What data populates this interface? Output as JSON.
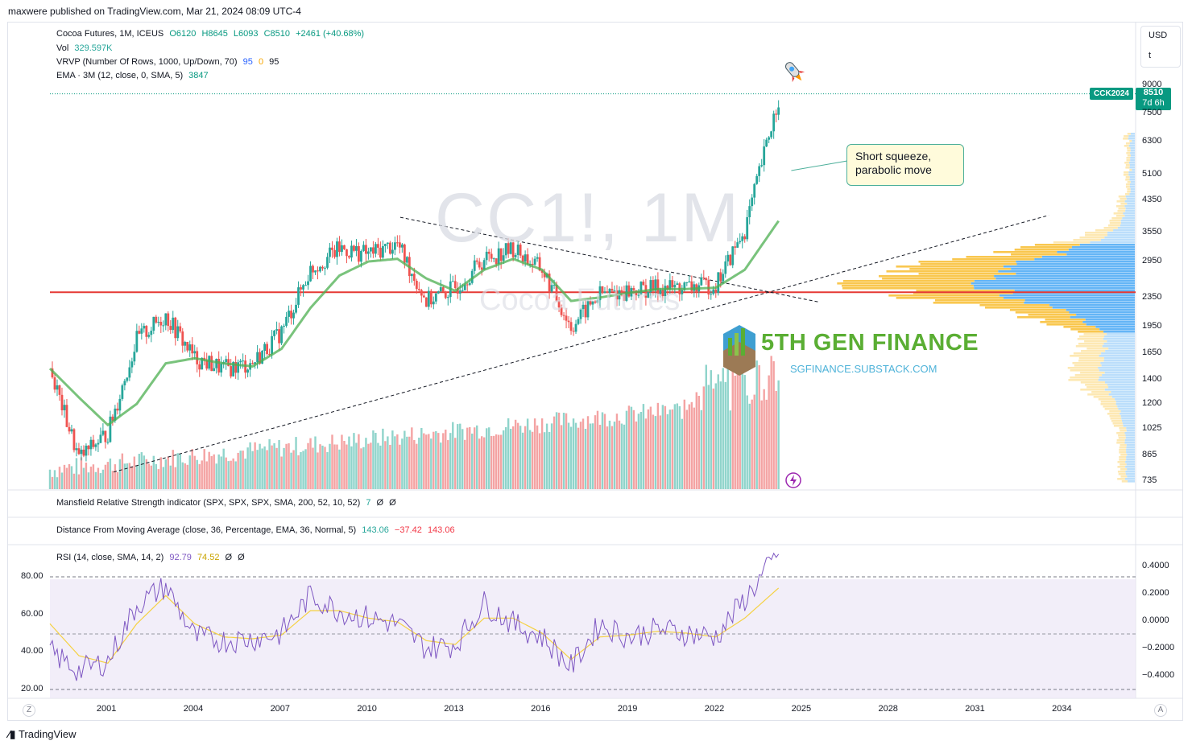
{
  "header": {
    "published": "maxwere published on TradingView.com, Mar 21, 2024 08:09 UTC-4"
  },
  "legend": {
    "symbol": "Cocoa Futures, 1M, ICEUS",
    "open": "O6120",
    "high": "H8645",
    "low": "L6093",
    "close": "C8510",
    "change": "+2461 (+40.68%)",
    "vol_label": "Vol",
    "vol_value": "329.597K",
    "vrvp_label": "VRVP (Number Of Rows, 1000, Up/Down, 70)",
    "vrvp_v1": "95",
    "vrvp_v2": "0",
    "vrvp_v3": "95",
    "ema_label": "EMA · 3M (12, close, 0, SMA, 5)",
    "ema_value": "3847"
  },
  "currency": {
    "label": "USD",
    "sub": "t"
  },
  "price_tags": {
    "symbol": "CCK2024",
    "price": "8510",
    "countdown": "7d 6h"
  },
  "watermark": {
    "symbol": "CC1!, 1M",
    "name": "Cocoa Futures"
  },
  "annotation": {
    "line1": "Short squeeze,",
    "line2": "parabolic move"
  },
  "brand": {
    "name": "5TH GEN FINANCE",
    "url": "SGFINANCE.SUBSTACK.COM"
  },
  "indicators": {
    "mansfield": {
      "label": "Mansfield Relative Strength indicator (SPX, SPX, SPX, SMA, 200, 52, 10, 52)",
      "v1": "7",
      "v2": "Ø",
      "v3": "Ø"
    },
    "dma": {
      "label": "Distance From Moving Average (close, 36, Percentage, EMA, 36, Normal, 5)",
      "v1": "143.06",
      "v2": "−37.42",
      "v3": "143.06"
    },
    "rsi": {
      "label": "RSI (14, close, SMA, 14, 2)",
      "v1": "92.79",
      "v2": "74.52",
      "v3": "Ø",
      "v4": "Ø"
    }
  },
  "footer": {
    "logo": "TradingView",
    "z_left": "Z",
    "a_right": "A"
  },
  "colors": {
    "up": "#26a69a",
    "down": "#ef5350",
    "ema": "#4caf50",
    "support": "#e53935",
    "rsi": "#7e57c2",
    "rsi_ma": "#f5d142",
    "vp_up": "#2196f3",
    "vp_down": "#ffb300"
  },
  "chart_data": [
    {
      "type": "candlestick",
      "title": "Cocoa Futures, 1M, ICEUS",
      "price_axis_ticks": [
        "9000",
        "7500",
        "6300",
        "5100",
        "4350",
        "3550",
        "2950",
        "2350",
        "1950",
        "1650",
        "1400",
        "1200",
        "1025",
        "865",
        "735"
      ],
      "x_ticks": [
        "2001",
        "2004",
        "2007",
        "2010",
        "2013",
        "2016",
        "2019",
        "2022",
        "2025",
        "2028",
        "2031",
        "2034"
      ],
      "scale": "log",
      "support_level": 2430,
      "series": [
        {
          "name": "price",
          "x": [
            1999,
            2000,
            2001,
            2002,
            2003,
            2004,
            2005,
            2006,
            2007,
            2008,
            2009,
            2010,
            2011,
            2012,
            2013,
            2014,
            2015,
            2016,
            2017,
            2018,
            2019,
            2020,
            2021,
            2022,
            2023,
            2024.2
          ],
          "values": [
            1500,
            850,
            1000,
            1800,
            2100,
            1600,
            1500,
            1550,
            1900,
            2800,
            3200,
            3100,
            3300,
            2300,
            2500,
            3000,
            3200,
            2800,
            1950,
            2400,
            2450,
            2500,
            2500,
            2550,
            3600,
            8510
          ]
        },
        {
          "name": "EMA",
          "x": [
            1999,
            2000,
            2001,
            2002,
            2003,
            2004,
            2005,
            2006,
            2007,
            2008,
            2009,
            2010,
            2011,
            2012,
            2013,
            2014,
            2015,
            2016,
            2017,
            2018,
            2019,
            2020,
            2021,
            2022,
            2023,
            2024.2
          ],
          "values": [
            1500,
            1250,
            1050,
            1200,
            1550,
            1600,
            1550,
            1520,
            1700,
            2200,
            2700,
            2950,
            3000,
            2650,
            2450,
            2800,
            3000,
            2800,
            2300,
            2350,
            2420,
            2480,
            2480,
            2500,
            2800,
            3847
          ]
        }
      ]
    },
    {
      "type": "line",
      "title": "RSI (14, close, SMA, 14, 2)",
      "y_ticks": [
        "80.00",
        "60.00",
        "40.00",
        "20.00"
      ],
      "y_ticks_right": [
        "0.4000",
        "0.2000",
        "0.0000",
        "−0.2000",
        "−0.4000"
      ],
      "ylim": [
        20,
        100
      ],
      "bands": [
        30,
        70
      ],
      "series": [
        {
          "name": "RSI",
          "x": [
            1999,
            2000,
            2001,
            2002,
            2003,
            2004,
            2005,
            2006,
            2007,
            2008,
            2009,
            2010,
            2011,
            2012,
            2013,
            2014,
            2015,
            2016,
            2017,
            2018,
            2019,
            2020,
            2021,
            2022,
            2023,
            2024.2
          ],
          "values": [
            40,
            30,
            35,
            65,
            75,
            48,
            46,
            47,
            50,
            70,
            62,
            58,
            55,
            42,
            44,
            66,
            55,
            48,
            32,
            55,
            48,
            52,
            50,
            48,
            68,
            92.79
          ]
        },
        {
          "name": "RSI MA",
          "x": [
            1999,
            2000,
            2001,
            2002,
            2003,
            2004,
            2005,
            2006,
            2007,
            2008,
            2009,
            2010,
            2011,
            2012,
            2013,
            2014,
            2015,
            2016,
            2017,
            2018,
            2019,
            2020,
            2021,
            2022,
            2023,
            2024.2
          ],
          "values": [
            55,
            38,
            34,
            55,
            70,
            55,
            48,
            47,
            49,
            62,
            62,
            58,
            56,
            46,
            44,
            58,
            58,
            50,
            36,
            48,
            49,
            51,
            50,
            48,
            58,
            74.52
          ]
        }
      ]
    }
  ]
}
